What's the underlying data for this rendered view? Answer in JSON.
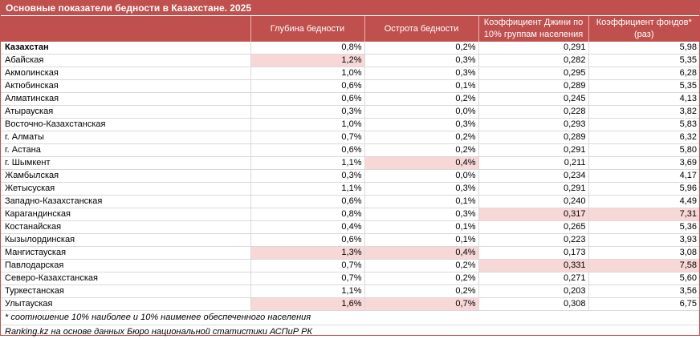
{
  "title": "Основные показатели бедности в Казахстане. 2025",
  "columns": [
    "",
    "Глубина бедности",
    "Острота бедности",
    "Коэффициент Джини по 10% группам населения",
    "Коэффициент фондов* (раз)"
  ],
  "rows": [
    {
      "name": "Казахстан",
      "depth": "0,8%",
      "severity": "0,2%",
      "gini": "0,291",
      "funds": "5,98"
    },
    {
      "name": "Абайская",
      "depth": "1,2%",
      "severity": "0,3%",
      "gini": "0,282",
      "funds": "5,35"
    },
    {
      "name": "Акмолинская",
      "depth": "1,0%",
      "severity": "0,3%",
      "gini": "0,295",
      "funds": "6,28"
    },
    {
      "name": "Актюбинская",
      "depth": "0,6%",
      "severity": "0,1%",
      "gini": "0,289",
      "funds": "5,35"
    },
    {
      "name": "Алматинская",
      "depth": "0,6%",
      "severity": "0,2%",
      "gini": "0,245",
      "funds": "4,13"
    },
    {
      "name": "Атырауская",
      "depth": "0,3%",
      "severity": "0,0%",
      "gini": "0,228",
      "funds": "3,82"
    },
    {
      "name": "Восточно-Казахстанская",
      "depth": "1,0%",
      "severity": "0,3%",
      "gini": "0,293",
      "funds": "5,83"
    },
    {
      "name": "г. Алматы",
      "depth": "0,7%",
      "severity": "0,2%",
      "gini": "0,289",
      "funds": "6,32"
    },
    {
      "name": "г. Астана",
      "depth": "0,6%",
      "severity": "0,2%",
      "gini": "0,291",
      "funds": "5,80"
    },
    {
      "name": "г. Шымкент",
      "depth": "1,1%",
      "severity": "0,4%",
      "gini": "0,211",
      "funds": "3,69"
    },
    {
      "name": "Жамбылская",
      "depth": "0,3%",
      "severity": "0,0%",
      "gini": "0,234",
      "funds": "4,17"
    },
    {
      "name": "Жетысуская",
      "depth": "1,1%",
      "severity": "0,3%",
      "gini": "0,291",
      "funds": "5,96"
    },
    {
      "name": "Западно-Казахстанская",
      "depth": "0,6%",
      "severity": "0,1%",
      "gini": "0,240",
      "funds": "4,49"
    },
    {
      "name": "Карагандинская",
      "depth": "0,8%",
      "severity": "0,3%",
      "gini": "0,317",
      "funds": "7,31"
    },
    {
      "name": "Костанайская",
      "depth": "0,4%",
      "severity": "0,1%",
      "gini": "0,265",
      "funds": "5,36"
    },
    {
      "name": "Кызылординская",
      "depth": "0,6%",
      "severity": "0,1%",
      "gini": "0,223",
      "funds": "3,93"
    },
    {
      "name": "Мангистауская",
      "depth": "1,3%",
      "severity": "0,4%",
      "gini": "0,173",
      "funds": "3,08"
    },
    {
      "name": "Павлодарская",
      "depth": "0,7%",
      "severity": "0,2%",
      "gini": "0,331",
      "funds": "7,58"
    },
    {
      "name": "Северо-Казахстанская",
      "depth": "0,7%",
      "severity": "0,2%",
      "gini": "0,271",
      "funds": "5,60"
    },
    {
      "name": "Туркестанская",
      "depth": "1,1%",
      "severity": "0,2%",
      "gini": "0,203",
      "funds": "3,56"
    },
    {
      "name": "Улытауская",
      "depth": "1,6%",
      "severity": "0,7%",
      "gini": "0,308",
      "funds": "6,75"
    }
  ],
  "highlights": {
    "depth": [
      "Абайская",
      "Мангистауская",
      "Улытауская"
    ],
    "severity": [
      "г. Шымкент",
      "Мангистауская",
      "Улытауская"
    ],
    "gini": [
      "Карагандинская",
      "Павлодарская"
    ],
    "funds": [
      "Карагандинская",
      "Павлодарская"
    ]
  },
  "footnote": "* соотношение 10% наиболее и 10% наименее обеспеченного населения",
  "source": "Ranking.kz на основе данных Бюро национальной статистики АСПиР РК",
  "colors": {
    "header": "#c0504d",
    "highlight": "#f8d7d7",
    "border": "#d9d9d9"
  }
}
